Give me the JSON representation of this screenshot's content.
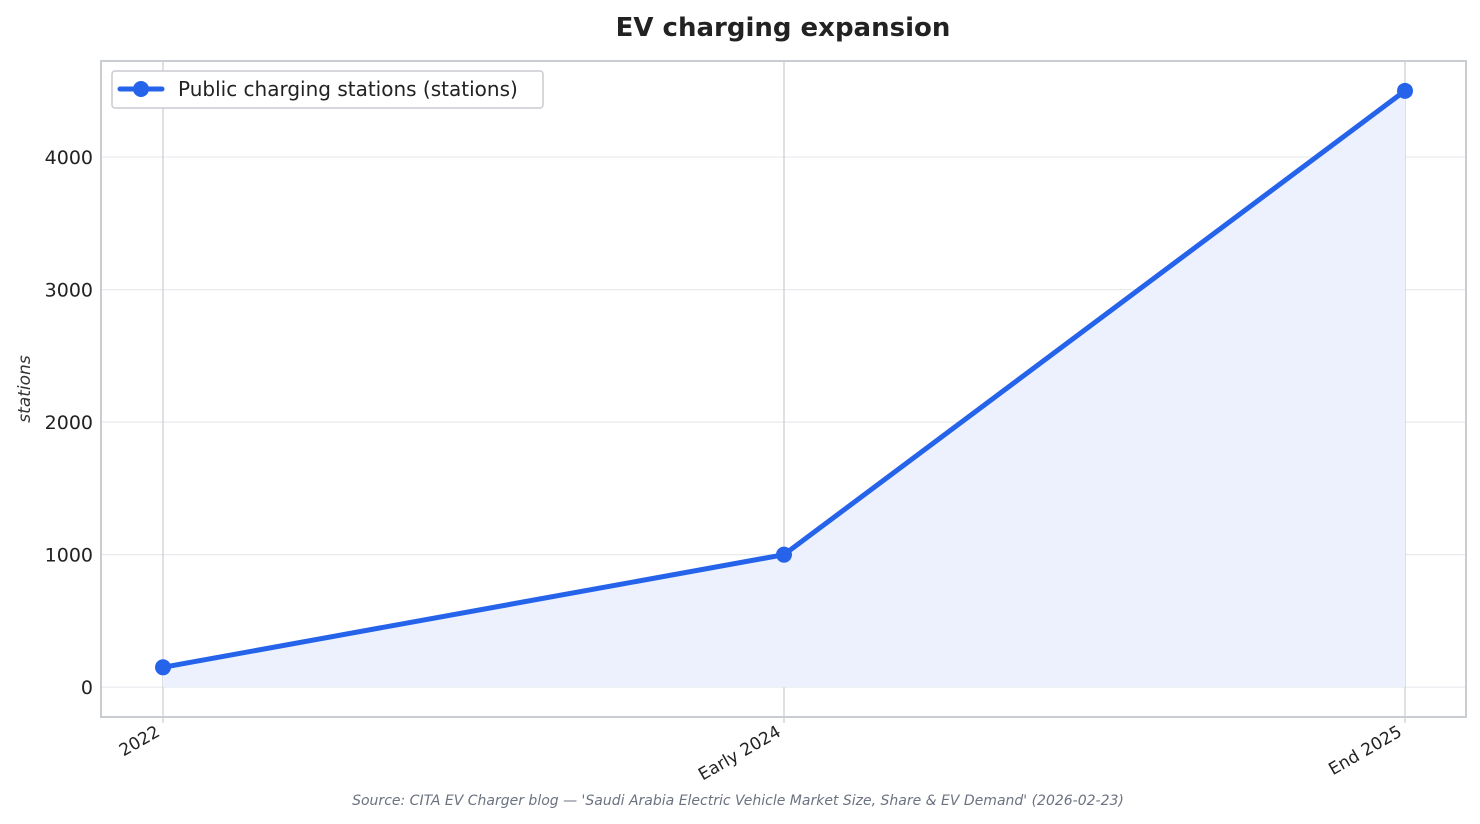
{
  "chart_data": {
    "type": "area",
    "title": "EV charging expansion",
    "xlabel": "",
    "ylabel": "stations",
    "categories": [
      "2022",
      "Early 2024",
      "End 2025"
    ],
    "series": [
      {
        "name": "Public charging stations (stations)",
        "values": [
          150,
          1000,
          4500
        ],
        "color": "#2563eb",
        "fill_color": "#ecf1fd"
      }
    ],
    "ylim": [
      -225,
      4725
    ],
    "yticks": [
      0,
      1000,
      2000,
      3000,
      4000
    ],
    "ytick_labels": [
      "0",
      "1000",
      "2000",
      "3000",
      "4000"
    ],
    "grid": true,
    "legend_position": "top-left",
    "source": "Source: CITA EV Charger blog — 'Saudi Arabia Electric Vehicle Market Size, Share & EV Demand' (2026-02-23)"
  }
}
